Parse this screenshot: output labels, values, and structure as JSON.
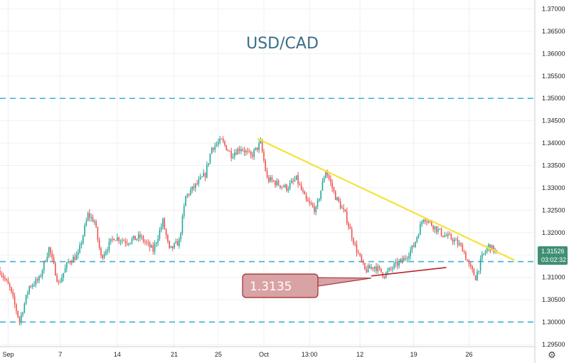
{
  "chart_data": {
    "type": "candlestick",
    "title": "USD/CAD",
    "ylim": [
      1.2945,
      1.372
    ],
    "y_ticks": [
      "1.37000",
      "1.36500",
      "1.36000",
      "1.35500",
      "1.35000",
      "1.34500",
      "1.34000",
      "1.33500",
      "1.33000",
      "1.32500",
      "1.32000",
      "1.31500",
      "1.31000",
      "1.30500",
      "1.30000",
      "1.29500"
    ],
    "x_ticks": [
      "Sep",
      "7",
      "14",
      "21",
      "25",
      "Oct",
      "13:00",
      "12",
      "19",
      "26"
    ],
    "x_tick_bar_index": [
      5,
      37,
      72,
      107,
      134,
      162,
      190,
      221,
      254,
      288
    ],
    "n_bars": 306,
    "last_price": "1.31526",
    "countdown": "03:02:32",
    "horizontal_levels": [
      1.35,
      1.3135,
      1.3
    ],
    "trendline": {
      "start": {
        "bar": 158,
        "price": 1.341
      },
      "end": {
        "bar": 316,
        "price": 1.3138
      }
    },
    "support_line": {
      "start": {
        "bar": 228,
        "price": 1.3103
      },
      "end": {
        "bar": 274,
        "price": 1.3122
      }
    },
    "annotation": {
      "label": "1.3135"
    },
    "price_path": [
      [
        0,
        1.3115
      ],
      [
        6,
        1.3075
      ],
      [
        12,
        1.3002
      ],
      [
        18,
        1.308
      ],
      [
        24,
        1.3095
      ],
      [
        30,
        1.3165
      ],
      [
        36,
        1.3085
      ],
      [
        42,
        1.3135
      ],
      [
        48,
        1.315
      ],
      [
        54,
        1.324
      ],
      [
        58,
        1.3225
      ],
      [
        62,
        1.3145
      ],
      [
        70,
        1.319
      ],
      [
        78,
        1.318
      ],
      [
        86,
        1.319
      ],
      [
        94,
        1.316
      ],
      [
        100,
        1.3225
      ],
      [
        104,
        1.316
      ],
      [
        110,
        1.318
      ],
      [
        114,
        1.328
      ],
      [
        120,
        1.3305
      ],
      [
        126,
        1.333
      ],
      [
        130,
        1.339
      ],
      [
        136,
        1.3405
      ],
      [
        142,
        1.3375
      ],
      [
        148,
        1.339
      ],
      [
        154,
        1.337
      ],
      [
        160,
        1.34
      ],
      [
        164,
        1.332
      ],
      [
        170,
        1.331
      ],
      [
        176,
        1.33
      ],
      [
        182,
        1.332
      ],
      [
        188,
        1.327
      ],
      [
        194,
        1.325
      ],
      [
        200,
        1.334
      ],
      [
        206,
        1.328
      ],
      [
        212,
        1.324
      ],
      [
        218,
        1.317
      ],
      [
        224,
        1.3115
      ],
      [
        230,
        1.3125
      ],
      [
        236,
        1.3105
      ],
      [
        242,
        1.3125
      ],
      [
        248,
        1.314
      ],
      [
        254,
        1.317
      ],
      [
        260,
        1.3235
      ],
      [
        266,
        1.3215
      ],
      [
        272,
        1.3195
      ],
      [
        278,
        1.3185
      ],
      [
        284,
        1.3165
      ],
      [
        288,
        1.3125
      ],
      [
        292,
        1.31
      ],
      [
        296,
        1.3145
      ],
      [
        300,
        1.317
      ],
      [
        306,
        1.3152
      ]
    ],
    "colors": {
      "up": "#26a69a",
      "down": "#ef5350",
      "level": "#3ab3cf",
      "trend": "#f7e23a",
      "support": "#b2242a",
      "price_tag": "#3f8f72"
    },
    "grid": true
  }
}
